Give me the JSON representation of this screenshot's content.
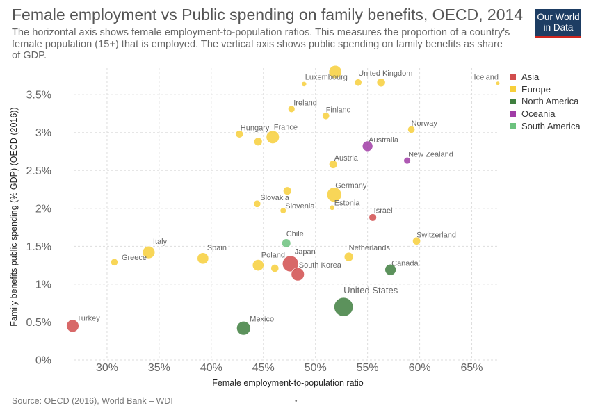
{
  "header": {
    "title": "Female employment vs Public spending on family benefits, OECD, 2014",
    "subtitle": "The horizontal axis shows female employment-to-population ratios. This measures the proportion of a country's female population (15+) that is employed. The vertical axis shows public spending on family benefits as share of GDP."
  },
  "logo": {
    "line1": "Our World",
    "line2": "in Data"
  },
  "footer": {
    "source": "Source: OECD (2016), World Bank – WDI",
    "marker": "•"
  },
  "legend": [
    {
      "name": "Asia",
      "color": "#d14d4d"
    },
    {
      "name": "Europe",
      "color": "#f7cf3b"
    },
    {
      "name": "North America",
      "color": "#3f7f3f"
    },
    {
      "name": "Oceania",
      "color": "#a03ca6"
    },
    {
      "name": "South America",
      "color": "#6cc27e"
    }
  ],
  "chart_data": {
    "type": "scatter",
    "title": "Female employment vs Public spending on family benefits, OECD, 2014",
    "xlabel": "Female employment-to-population ratio",
    "ylabel": "Family benefits public spending (% GDP) (OECD (2016))",
    "xlim": [
      26.8,
      67.5
    ],
    "ylim": [
      0,
      3.85
    ],
    "xticks": [
      30,
      35,
      40,
      45,
      50,
      55,
      60,
      65
    ],
    "xtick_labels": [
      "30%",
      "35%",
      "40%",
      "45%",
      "50%",
      "55%",
      "60%",
      "65%"
    ],
    "yticks": [
      0,
      0.5,
      1,
      1.5,
      2,
      2.5,
      3,
      3.5
    ],
    "ytick_labels": [
      "0%",
      "0.5%",
      "1%",
      "1.5%",
      "2%",
      "2.5%",
      "3%",
      "3.5%"
    ],
    "grid": true,
    "legend_position": "right",
    "points": [
      {
        "country": "Turkey",
        "region": "Asia",
        "x": 26.7,
        "y": 0.45,
        "size": 3
      },
      {
        "country": "Greece",
        "region": "Europe",
        "x": 30.7,
        "y": 1.29,
        "size": 1
      },
      {
        "country": "Italy",
        "region": "Europe",
        "x": 34.0,
        "y": 1.42,
        "size": 3
      },
      {
        "country": "Spain",
        "region": "Europe",
        "x": 39.2,
        "y": 1.34,
        "size": 2.5
      },
      {
        "country": "Mexico",
        "region": "North America",
        "x": 43.1,
        "y": 0.42,
        "size": 3.7
      },
      {
        "country": "Poland",
        "region": "Europe",
        "x": 44.5,
        "y": 1.25,
        "size": 2.5
      },
      {
        "country": "Hungary",
        "region": "Europe",
        "x": 42.7,
        "y": 2.98,
        "size": 1.1
      },
      {
        "country": "France",
        "region": "Europe",
        "x": 45.9,
        "y": 2.94,
        "size": 3.3
      },
      {
        "country": "Slovakia",
        "region": "Europe",
        "x": 44.4,
        "y": 2.06,
        "size": 1
      },
      {
        "country": "Slovenia",
        "region": "Europe",
        "x": 46.9,
        "y": 1.97,
        "size": 0.7
      },
      {
        "country": "Ireland",
        "region": "Europe",
        "x": 47.7,
        "y": 3.31,
        "size": 0.9
      },
      {
        "country": "Luxembourg",
        "region": "Europe",
        "x": 48.9,
        "y": 3.64,
        "size": 0.5
      },
      {
        "country": "Chile",
        "region": "South America",
        "x": 47.2,
        "y": 1.54,
        "size": 1.5
      },
      {
        "country": "Japan",
        "region": "Asia",
        "x": 47.6,
        "y": 1.27,
        "size": 5
      },
      {
        "country": "South Korea",
        "region": "Asia",
        "x": 48.3,
        "y": 1.13,
        "size": 3.3
      },
      {
        "country": "Finland",
        "region": "Europe",
        "x": 51.0,
        "y": 3.22,
        "size": 1
      },
      {
        "country": "Austria",
        "region": "Europe",
        "x": 51.7,
        "y": 2.58,
        "size": 1.3
      },
      {
        "country": "Germany",
        "region": "Europe",
        "x": 51.8,
        "y": 2.18,
        "size": 4.2
      },
      {
        "country": "Estonia",
        "region": "Europe",
        "x": 51.6,
        "y": 2.01,
        "size": 0.5
      },
      {
        "country": "United Kingdom",
        "region": "Europe",
        "x": 51.9,
        "y": 3.8,
        "size": 3.2
      },
      {
        "country": "Netherlands",
        "region": "Europe",
        "x": 53.2,
        "y": 1.36,
        "size": 1.6
      },
      {
        "country": "United States",
        "region": "North America",
        "x": 52.7,
        "y": 0.7,
        "size": 7
      },
      {
        "country": "Australia",
        "region": "Oceania",
        "x": 55.0,
        "y": 2.82,
        "size": 2.1
      },
      {
        "country": "Israel",
        "region": "Asia",
        "x": 55.5,
        "y": 1.88,
        "size": 1.1
      },
      {
        "country": "Canada",
        "region": "North America",
        "x": 57.2,
        "y": 1.19,
        "size": 2.4
      },
      {
        "country": "New Zealand",
        "region": "Oceania",
        "x": 58.8,
        "y": 2.63,
        "size": 0.9
      },
      {
        "country": "Norway",
        "region": "Europe",
        "x": 59.2,
        "y": 3.04,
        "size": 1
      },
      {
        "country": "Switzerland",
        "region": "Europe",
        "x": 59.7,
        "y": 1.57,
        "size": 1.2
      },
      {
        "country": "Iceland",
        "region": "Europe",
        "x": 67.5,
        "y": 3.65,
        "size": 0.3
      },
      {
        "region": "Europe",
        "x": 44.5,
        "y": 2.88,
        "size": 1.3
      },
      {
        "region": "Europe",
        "x": 47.3,
        "y": 2.23,
        "size": 1.3
      },
      {
        "region": "Europe",
        "x": 46.1,
        "y": 1.21,
        "size": 1.2
      },
      {
        "region": "Europe",
        "x": 54.1,
        "y": 3.66,
        "size": 1
      },
      {
        "region": "Europe",
        "x": 56.3,
        "y": 3.66,
        "size": 1.4
      }
    ],
    "labels": [
      {
        "text": "Turkey",
        "x": 27.1,
        "y": 0.52,
        "size": 11
      },
      {
        "text": "Greece",
        "x": 31.4,
        "y": 1.32,
        "size": 11
      },
      {
        "text": "Italy",
        "x": 34.4,
        "y": 1.53,
        "size": 11
      },
      {
        "text": "Spain",
        "x": 39.6,
        "y": 1.45,
        "size": 11
      },
      {
        "text": "Mexico",
        "x": 43.7,
        "y": 0.51,
        "size": 11
      },
      {
        "text": "Poland",
        "x": 44.8,
        "y": 1.35,
        "size": 11
      },
      {
        "text": "Hungary",
        "x": 42.8,
        "y": 3.03,
        "size": 11
      },
      {
        "text": "France",
        "x": 46.0,
        "y": 3.04,
        "size": 11
      },
      {
        "text": "Slovakia",
        "x": 44.7,
        "y": 2.11,
        "size": 11
      },
      {
        "text": "Slovenia",
        "x": 47.1,
        "y": 2.0,
        "size": 11
      },
      {
        "text": "Ireland",
        "x": 47.9,
        "y": 3.36,
        "size": 11
      },
      {
        "text": "Luxembourg",
        "x": 49.0,
        "y": 3.7,
        "size": 11
      },
      {
        "text": "Chile",
        "x": 47.2,
        "y": 1.63,
        "size": 11
      },
      {
        "text": "Japan",
        "x": 48.0,
        "y": 1.4,
        "size": 11
      },
      {
        "text": "South Korea",
        "x": 48.4,
        "y": 1.22,
        "size": 11
      },
      {
        "text": "Finland",
        "x": 51.0,
        "y": 3.27,
        "size": 11
      },
      {
        "text": "Austria",
        "x": 51.8,
        "y": 2.63,
        "size": 11
      },
      {
        "text": "Germany",
        "x": 51.9,
        "y": 2.27,
        "size": 11
      },
      {
        "text": "Estonia",
        "x": 51.8,
        "y": 2.04,
        "size": 11
      },
      {
        "text": "United Kingdom",
        "x": 54.1,
        "y": 3.75,
        "size": 11
      },
      {
        "text": "Netherlands",
        "x": 53.2,
        "y": 1.45,
        "size": 11
      },
      {
        "text": "United States",
        "x": 52.7,
        "y": 0.88,
        "size": 13
      },
      {
        "text": "Australia",
        "x": 55.1,
        "y": 2.87,
        "size": 11
      },
      {
        "text": "Israel",
        "x": 55.6,
        "y": 1.94,
        "size": 11
      },
      {
        "text": "Canada",
        "x": 57.3,
        "y": 1.24,
        "size": 11
      },
      {
        "text": "New Zealand",
        "x": 58.9,
        "y": 2.68,
        "size": 11
      },
      {
        "text": "Norway",
        "x": 59.2,
        "y": 3.09,
        "size": 11
      },
      {
        "text": "Switzerland",
        "x": 59.7,
        "y": 1.62,
        "size": 11
      },
      {
        "text": "Iceland",
        "x": 65.2,
        "y": 3.7,
        "size": 11
      }
    ]
  }
}
